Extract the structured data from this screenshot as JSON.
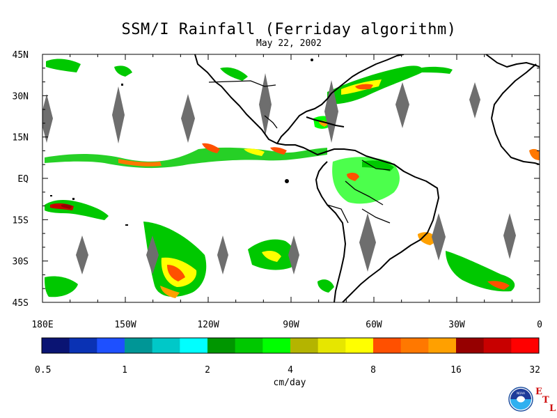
{
  "title": "SSM/I Rainfall (Ferriday algorithm)",
  "subtitle": "May 22, 2002",
  "map": {
    "lat_labels": [
      "45N",
      "30N",
      "15N",
      "EQ",
      "15S",
      "30S",
      "45S"
    ],
    "lon_labels": [
      "180E",
      "150W",
      "120W",
      "90W",
      "60W",
      "30W",
      "0"
    ],
    "background": "#ffffff",
    "coast_color": "#000000",
    "no_data_color": "#6e6e6e"
  },
  "colorbar": {
    "colors": [
      "#0a1473",
      "#0a32b4",
      "#1e50ff",
      "#009696",
      "#00c8c8",
      "#00ffff",
      "#009600",
      "#00c800",
      "#00ff00",
      "#b4b400",
      "#e6e600",
      "#ffff00",
      "#ff5000",
      "#ff7800",
      "#ffa000",
      "#960000",
      "#c80000",
      "#ff0000"
    ],
    "tick_labels": [
      "0.5",
      "1",
      "2",
      "4",
      "8",
      "16",
      "32"
    ],
    "unit": "cm/day"
  },
  "logo": {
    "noaa_text": "NOAA",
    "etl_letters": [
      "E",
      "T",
      "L"
    ]
  }
}
